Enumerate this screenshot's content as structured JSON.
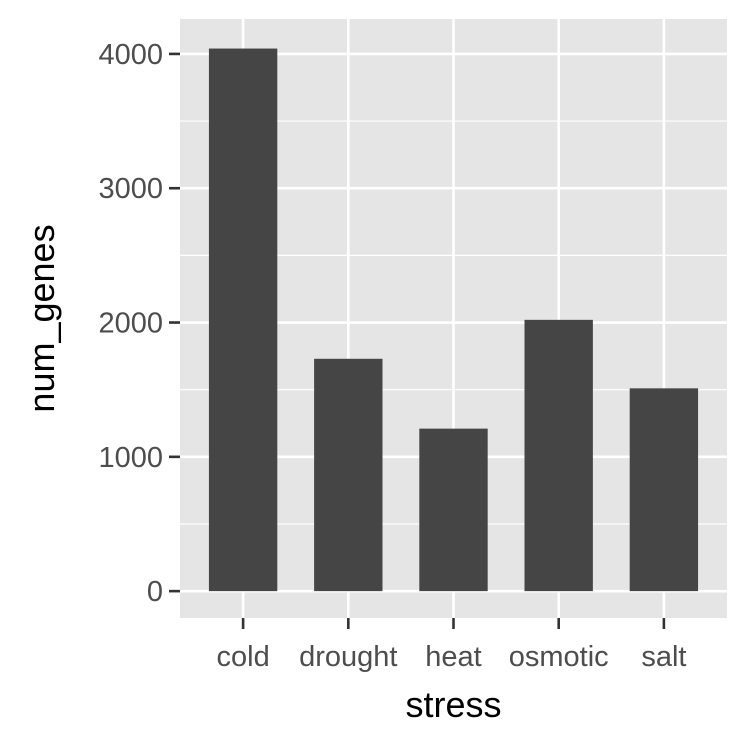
{
  "chart_data": {
    "type": "bar",
    "categories": [
      "cold",
      "drought",
      "heat",
      "osmotic",
      "salt"
    ],
    "values": [
      4040,
      1730,
      1210,
      2020,
      1510
    ],
    "xlabel": "stress",
    "ylabel": "num_genes",
    "ylim": [
      -200,
      4260
    ],
    "yticks": [
      0,
      1000,
      2000,
      3000,
      4000
    ],
    "grid": true,
    "colors": {
      "panel_background": "#e5e5e5",
      "grid": "#ffffff",
      "bar_fill": "#454545",
      "tick_mark": "#333333",
      "tick_text": "#4d4d4d",
      "title_text": "#000000"
    }
  }
}
